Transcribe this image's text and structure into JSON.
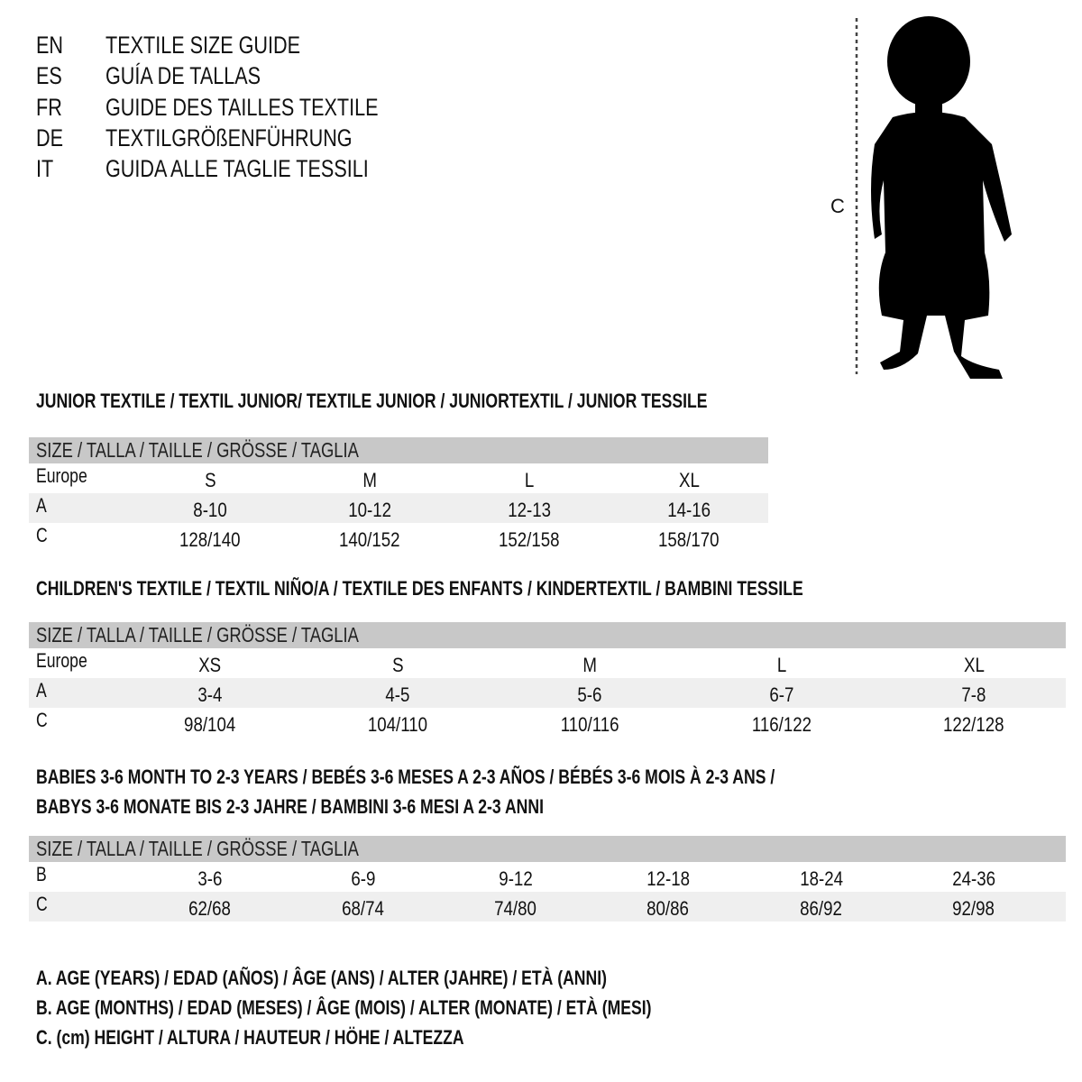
{
  "languages": [
    {
      "code": "EN",
      "text": "TEXTILE SIZE GUIDE"
    },
    {
      "code": "ES",
      "text": "GUÍA DE TALLAS"
    },
    {
      "code": "FR",
      "text": "GUIDE DES TAILLES TEXTILE"
    },
    {
      "code": "DE",
      "text": "TEXTILGRÖßENFÜHRUNG"
    },
    {
      "code": "IT",
      "text": "GUIDA ALLE TAGLIE TESSILI"
    }
  ],
  "figure": {
    "measure_label": "C",
    "icon": "child-silhouette"
  },
  "sections": [
    {
      "title_lines": [
        "JUNIOR TEXTILE / TEXTIL JUNIOR/ TEXTILE JUNIOR / JUNIORTEXTIL / JUNIOR TESSILE"
      ],
      "header": "SIZE / TALLA / TAILLE / GRÖSSE / TAGLIA",
      "rows": [
        {
          "label": "Europe",
          "values": [
            "S",
            "M",
            "L",
            "XL"
          ]
        },
        {
          "label": "A",
          "values": [
            "8-10",
            "10-12",
            "12-13",
            "14-16"
          ]
        },
        {
          "label": "C",
          "values": [
            "128/140",
            "140/152",
            "152/158",
            "158/170"
          ]
        }
      ]
    },
    {
      "title_lines": [
        "CHILDREN'S TEXTILE / TEXTIL NIÑO/A / TEXTILE DES ENFANTS / KINDERTEXTIL / BAMBINI TESSILE"
      ],
      "header": "SIZE / TALLA / TAILLE / GRÖSSE / TAGLIA",
      "rows": [
        {
          "label": "Europe",
          "values": [
            "XS",
            "S",
            "M",
            "L",
            "XL"
          ]
        },
        {
          "label": "A",
          "values": [
            "3-4",
            "4-5",
            "5-6",
            "6-7",
            "7-8"
          ]
        },
        {
          "label": "C",
          "values": [
            "98/104",
            "104/110",
            "110/116",
            "116/122",
            "122/128"
          ]
        }
      ]
    },
    {
      "title_lines": [
        "BABIES 3-6 MONTH TO 2-3 YEARS / BEBÉS 3-6 MESES A 2-3 AÑOS / BÉBÉS 3-6 MOIS À 2-3 ANS /",
        "BABYS 3-6 MONATE BIS 2-3 JAHRE / BAMBINI 3-6 MESI A 2-3 ANNI"
      ],
      "header": "SIZE / TALLA / TAILLE / GRÖSSE / TAGLIA",
      "rows": [
        {
          "label": "B",
          "values": [
            "3-6",
            "6-9",
            "9-12",
            "12-18",
            "18-24",
            "24-36"
          ]
        },
        {
          "label": "C",
          "values": [
            "62/68",
            "68/74",
            "74/80",
            "80/86",
            "86/92",
            "92/98"
          ]
        }
      ]
    }
  ],
  "legend": [
    "A. AGE (YEARS) / EDAD (AÑOS) / ÂGE (ANS) / ALTER (JAHRE) / ETÀ (ANNI)",
    "B. AGE (MONTHS) / EDAD (MESES) / ÂGE (MOIS) / ALTER (MONATE) / ETÀ (MESI)",
    "C. (cm) HEIGHT / ALTURA / HAUTEUR / HÖHE / ALTEZZA"
  ]
}
